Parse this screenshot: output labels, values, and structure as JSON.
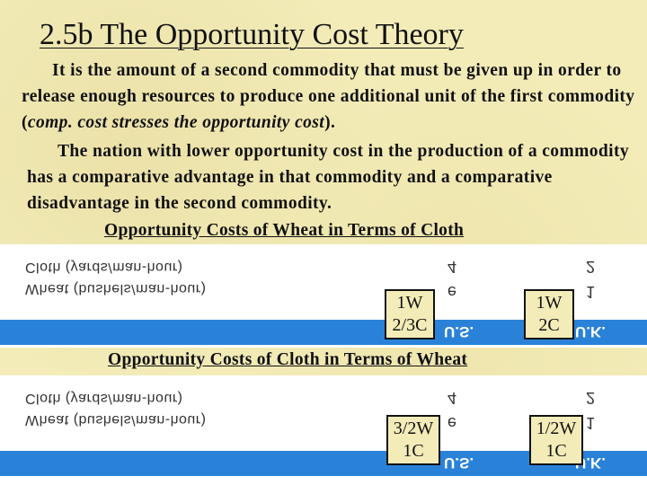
{
  "slide": {
    "title": "2.5b The Opportunity Cost Theory",
    "para1_part1": "It is the amount of a second commodity that must be given up in order to release enough resources to produce one additional unit of the first commodity (",
    "para1_italic": "comp. cost stresses the opportunity cost",
    "para1_part2": ").",
    "para2": "The nation with lower opportunity cost in the production of a commodity has a comparative advantage in that commodity and a comparative disadvantage in the second commodity."
  },
  "table1": {
    "caption": "Opportunity Costs of Wheat in Terms of Cloth",
    "row1_mirrored": "Cloth (yards/man-hour)",
    "row2_mirrored": "Wheat (bushels/man-hour)",
    "col1_glyph": "4",
    "col2_glyph": "e",
    "col3_glyph": "2",
    "col4_glyph": "1",
    "bar_left": "U.S.",
    "bar_right": "U.K.",
    "us_cell": [
      "1W",
      "2/3C"
    ],
    "uk_cell": [
      "1W",
      "2C"
    ]
  },
  "table2": {
    "caption": "Opportunity Costs of Cloth in Terms of Wheat",
    "row1_mirrored": "Cloth (yards/man-hour)",
    "row2_mirrored": "Wheat (bushels/man-hour)",
    "col1_glyph": "4",
    "col2_glyph": "e",
    "col3_glyph": "2",
    "col4_glyph": "1",
    "bar_left": "U.S.",
    "bar_right": "U.K.",
    "us_cell": [
      "3/2W",
      "1C"
    ],
    "uk_cell": [
      "1/2W",
      "1C"
    ]
  }
}
